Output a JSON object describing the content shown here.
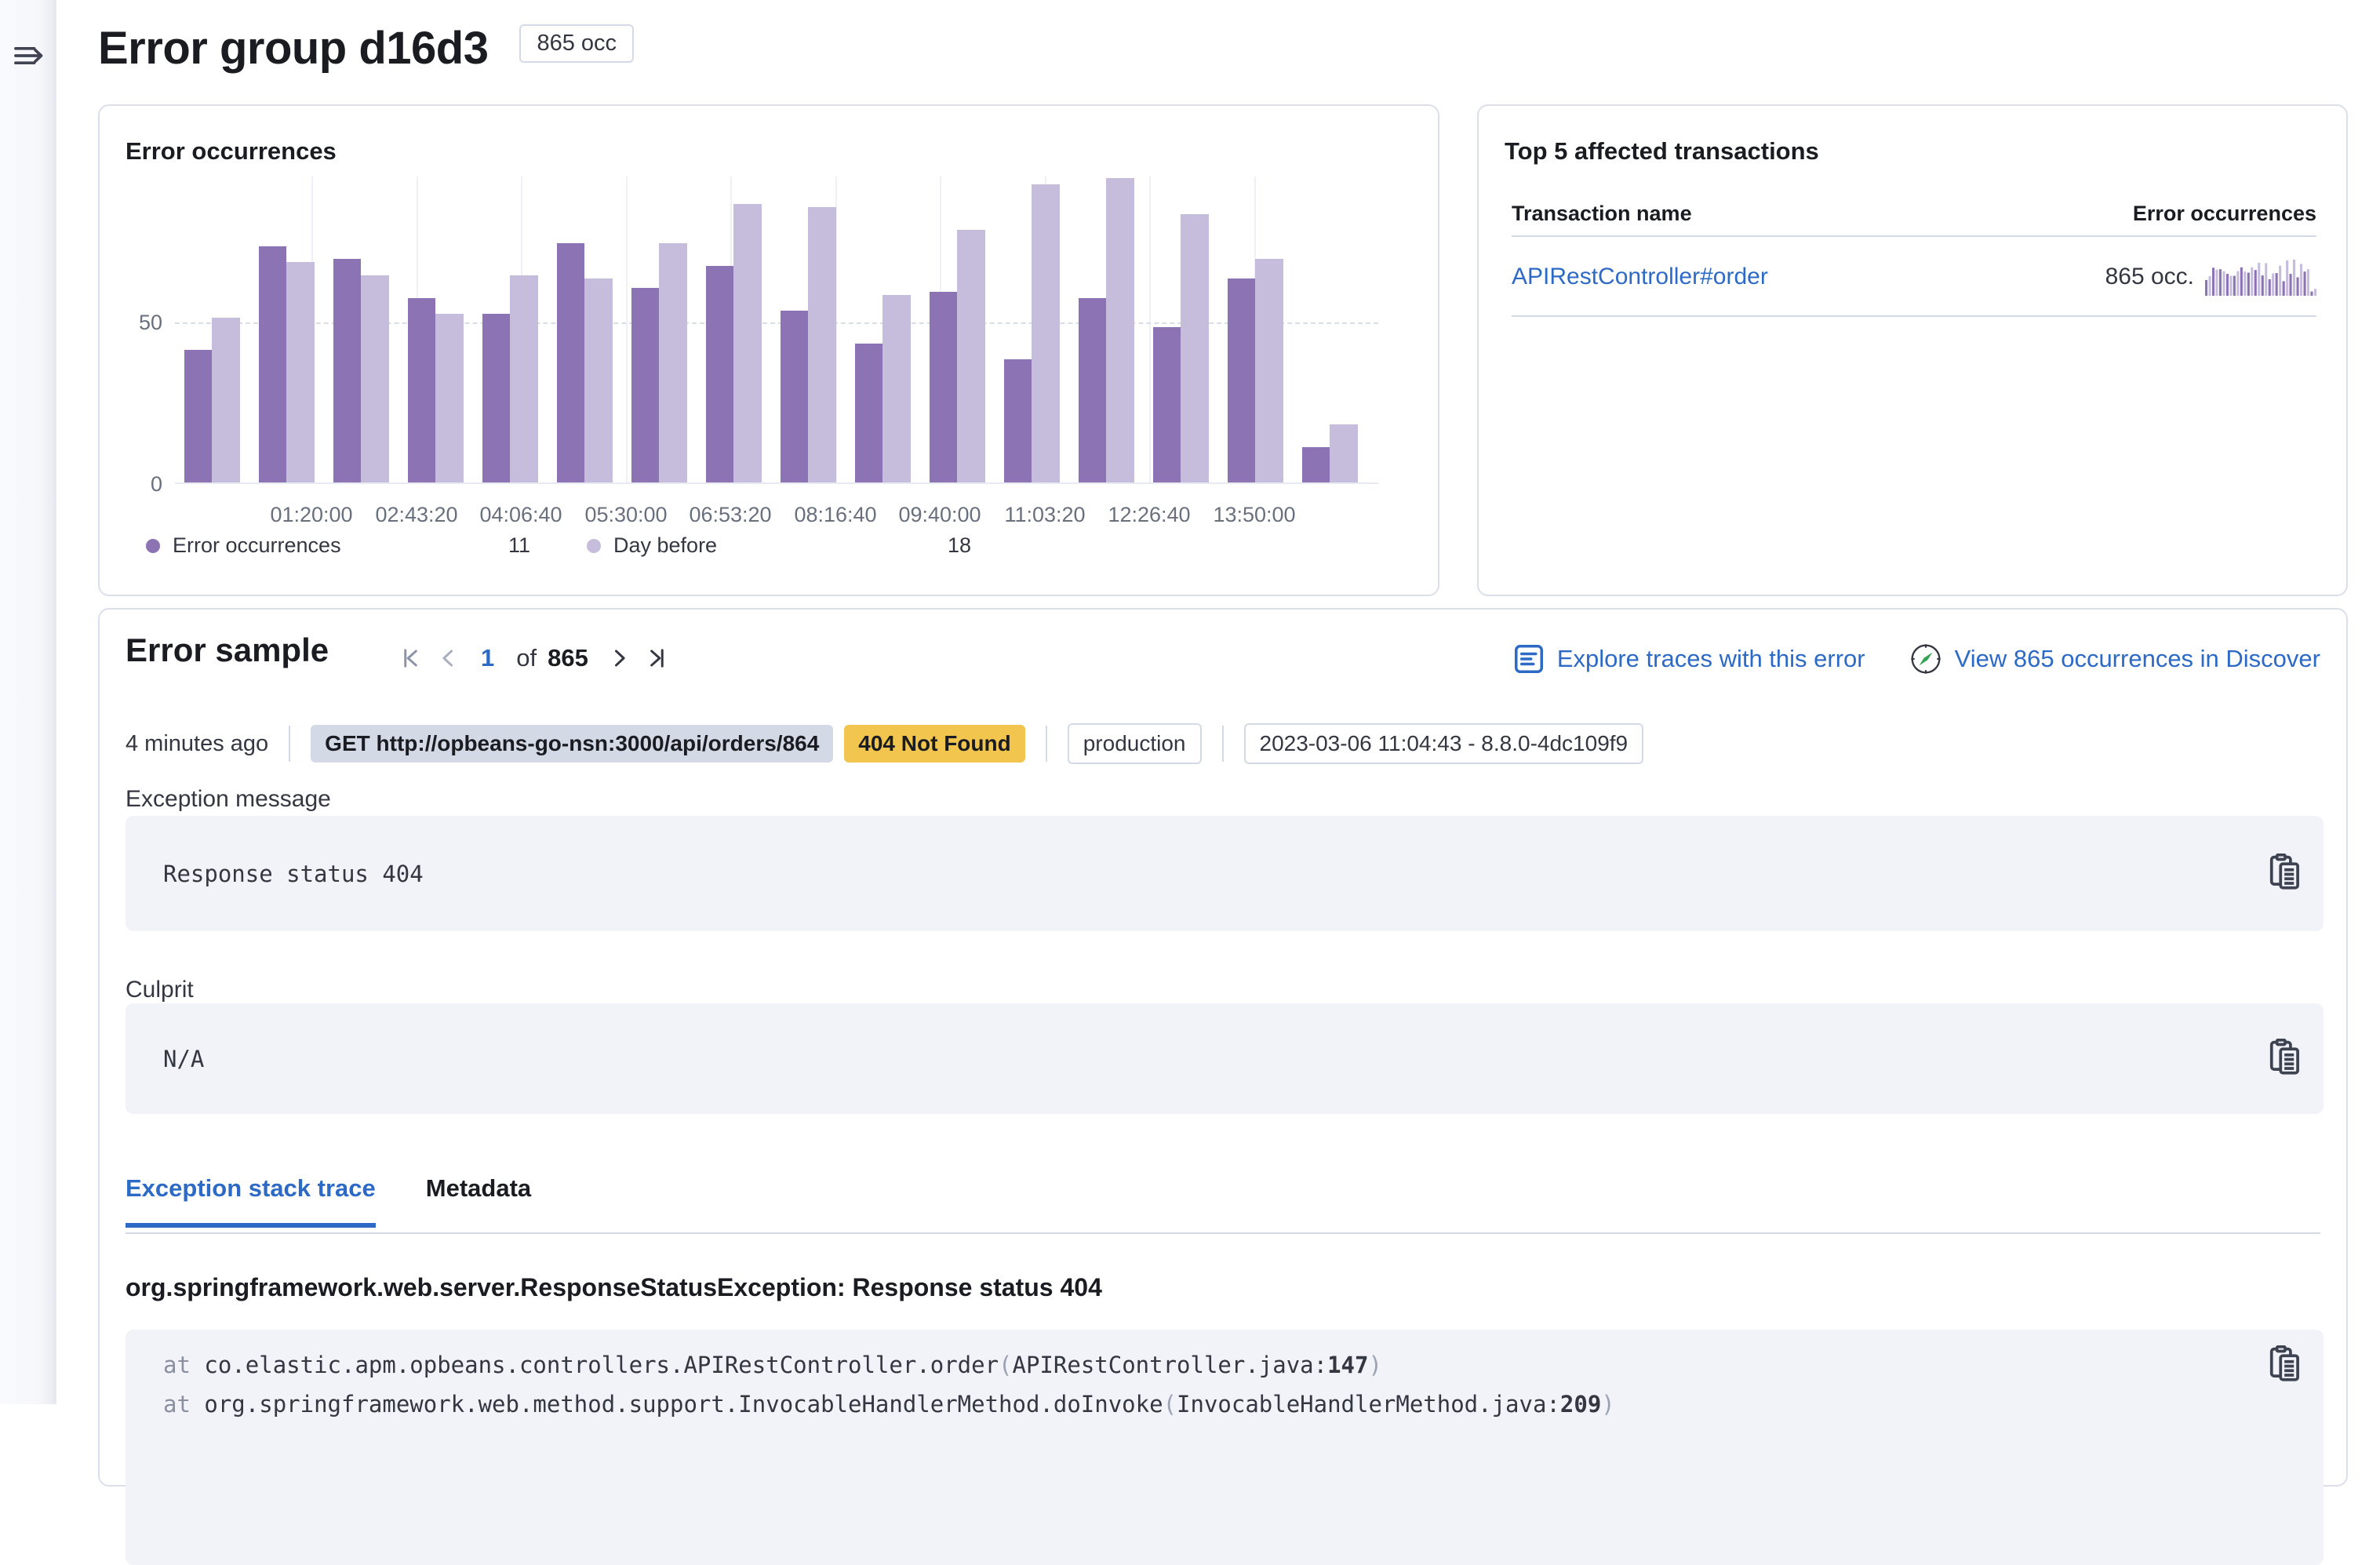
{
  "page": {
    "title": "Error group d16d3",
    "title_badge": "865 occ"
  },
  "colors": {
    "series_current": "#8c73b4",
    "series_day_before": "#c6bddd",
    "accent_blue": "#2d6ac6",
    "badge_warn": "#f1c54e",
    "code_bg": "#f1f3f9"
  },
  "occurrences_panel": {
    "title": "Error occurrences"
  },
  "chart_data": [
    {
      "type": "bar",
      "title": "Error occurrences",
      "x_tick_labels": [
        "01:20:00",
        "02:43:20",
        "04:06:40",
        "05:30:00",
        "06:53:20",
        "08:16:40",
        "09:40:00",
        "11:03:20",
        "12:26:40",
        "13:50:00"
      ],
      "series": [
        {
          "name": "Error occurrences",
          "color": "#8c73b4",
          "values": [
            41,
            73,
            69,
            57,
            52,
            74,
            60,
            67,
            53,
            43,
            59,
            38,
            57,
            48,
            63,
            11
          ]
        },
        {
          "name": "Day before",
          "color": "#c6bddd",
          "values": [
            51,
            68,
            64,
            52,
            64,
            63,
            74,
            86,
            85,
            58,
            78,
            92,
            94,
            83,
            69,
            18
          ]
        }
      ],
      "legend_values": [
        "11",
        "18"
      ],
      "ylim": [
        0,
        95
      ],
      "yticks": [
        0,
        50
      ],
      "grid": "horizontal-dashed-at-50, vertical-light",
      "legend_position": "bottom"
    },
    {
      "type": "bar",
      "context": "transactions-row-sparkline",
      "interleaved_series_colors": [
        "#8c73b4",
        "#c6bddd"
      ],
      "values": [
        41,
        51,
        73,
        68,
        69,
        64,
        57,
        52,
        52,
        64,
        74,
        63,
        60,
        74,
        67,
        86,
        53,
        85,
        43,
        58,
        59,
        78,
        38,
        92,
        57,
        94,
        48,
        83,
        63,
        69,
        11,
        18
      ]
    }
  ],
  "transactions_panel": {
    "title": "Top 5 affected transactions",
    "col_name": "Transaction name",
    "col_occurrences": "Error occurrences",
    "row": {
      "name": "APIRestController#order",
      "occurrences": "865 occ."
    }
  },
  "sample_panel": {
    "title": "Error sample",
    "pagination": {
      "current": "1",
      "of_label": "of",
      "total": "865"
    },
    "links": {
      "explore": "Explore traces with this error",
      "discover": "View 865 occurrences in Discover"
    },
    "meta": {
      "time_ago": "4 minutes ago",
      "request_badge": "GET http://opbeans-go-nsn:3000/api/orders/864",
      "status_badge": "404 Not Found",
      "environment_badge": "production",
      "timestamp_badge": "2023-03-06 11:04:43 - 8.8.0-4dc109f9"
    },
    "exception_message_label": "Exception message",
    "exception_message": "Response status 404",
    "culprit_label": "Culprit",
    "culprit": "N/A",
    "tabs": [
      {
        "label": "Exception stack trace",
        "active": true
      },
      {
        "label": "Metadata",
        "active": false
      }
    ],
    "stack_title": "org.springframework.web.server.ResponseStatusException: Response status 404",
    "stack_frames": [
      {
        "at": "at ",
        "fn": "co.elastic.apm.opbeans.controllers.APIRestController.order",
        "open": "(",
        "file": "APIRestController.java:",
        "line": "147",
        "close": ")"
      },
      {
        "at": "at ",
        "fn": "org.springframework.web.method.support.InvocableHandlerMethod.doInvoke",
        "open": "(",
        "file": "InvocableHandlerMethod.java:",
        "line": "209",
        "close": ")"
      }
    ]
  }
}
